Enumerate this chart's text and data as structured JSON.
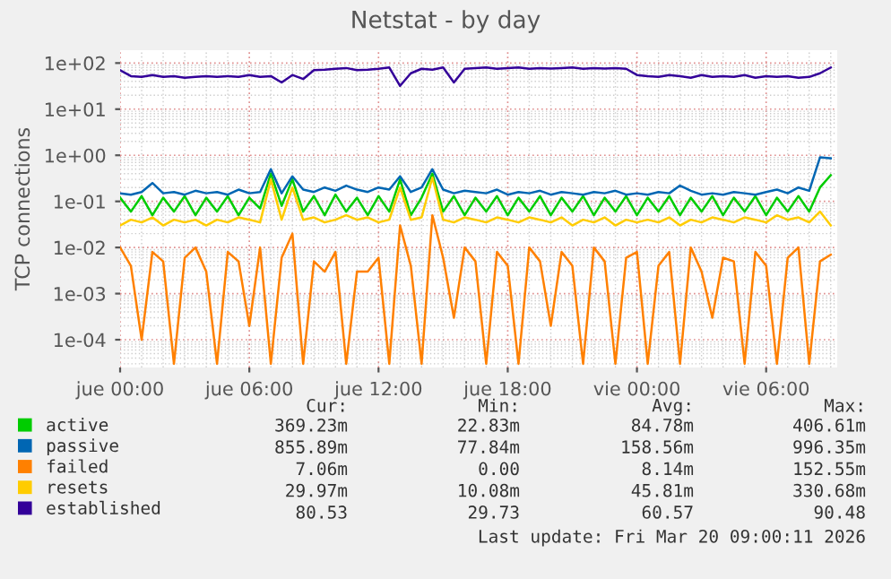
{
  "chart_data": {
    "type": "line",
    "title": "Netstat - by day",
    "ylabel": "TCP connections",
    "log": "y",
    "ylim": [
      2.5e-05,
      190
    ],
    "yticks": [
      {
        "value": 0.0001,
        "label": "1e-04"
      },
      {
        "value": 0.001,
        "label": "1e-03"
      },
      {
        "value": 0.01,
        "label": "1e-02"
      },
      {
        "value": 0.1,
        "label": "1e-01"
      },
      {
        "value": 1,
        "label": "1e+00"
      },
      {
        "value": 10,
        "label": "1e+01"
      },
      {
        "value": 100,
        "label": "1e+02"
      }
    ],
    "xlim": [
      "2026-03-19T00:00",
      "2026-03-20T09:18"
    ],
    "xticks": [
      {
        "value": "2026-03-19T00:00",
        "label": "jue 00:00"
      },
      {
        "value": "2026-03-19T06:00",
        "label": "jue 06:00"
      },
      {
        "value": "2026-03-19T12:00",
        "label": "jue 12:00"
      },
      {
        "value": "2026-03-19T18:00",
        "label": "jue 18:00"
      },
      {
        "value": "2026-03-20T00:00",
        "label": "vie 00:00"
      },
      {
        "value": "2026-03-20T06:00",
        "label": "vie 06:00"
      }
    ],
    "x": [
      "2026-03-19T00:00",
      "2026-03-19T00:30",
      "2026-03-19T01:00",
      "2026-03-19T01:30",
      "2026-03-19T02:00",
      "2026-03-19T02:30",
      "2026-03-19T03:00",
      "2026-03-19T03:30",
      "2026-03-19T04:00",
      "2026-03-19T04:30",
      "2026-03-19T05:00",
      "2026-03-19T05:30",
      "2026-03-19T06:00",
      "2026-03-19T06:30",
      "2026-03-19T07:00",
      "2026-03-19T07:30",
      "2026-03-19T08:00",
      "2026-03-19T08:30",
      "2026-03-19T09:00",
      "2026-03-19T09:30",
      "2026-03-19T10:00",
      "2026-03-19T10:30",
      "2026-03-19T11:00",
      "2026-03-19T11:30",
      "2026-03-19T12:00",
      "2026-03-19T12:30",
      "2026-03-19T13:00",
      "2026-03-19T13:30",
      "2026-03-19T14:00",
      "2026-03-19T14:30",
      "2026-03-19T15:00",
      "2026-03-19T15:30",
      "2026-03-19T16:00",
      "2026-03-19T16:30",
      "2026-03-19T17:00",
      "2026-03-19T17:30",
      "2026-03-19T18:00",
      "2026-03-19T18:30",
      "2026-03-19T19:00",
      "2026-03-19T19:30",
      "2026-03-19T20:00",
      "2026-03-19T20:30",
      "2026-03-19T21:00",
      "2026-03-19T21:30",
      "2026-03-19T22:00",
      "2026-03-19T22:30",
      "2026-03-19T23:00",
      "2026-03-19T23:30",
      "2026-03-20T00:00",
      "2026-03-20T00:30",
      "2026-03-20T01:00",
      "2026-03-20T01:30",
      "2026-03-20T02:00",
      "2026-03-20T02:30",
      "2026-03-20T03:00",
      "2026-03-20T03:30",
      "2026-03-20T04:00",
      "2026-03-20T04:30",
      "2026-03-20T05:00",
      "2026-03-20T05:30",
      "2026-03-20T06:00",
      "2026-03-20T06:30",
      "2026-03-20T07:00",
      "2026-03-20T07:30",
      "2026-03-20T08:00",
      "2026-03-20T08:30",
      "2026-03-20T09:00"
    ],
    "grid": true,
    "legend": "bottom left",
    "line_style": "solid",
    "marker": "none",
    "series": [
      {
        "name": "active",
        "color": "#00cc00",
        "values": [
          0.12,
          0.06,
          0.13,
          0.05,
          0.12,
          0.06,
          0.13,
          0.05,
          0.12,
          0.06,
          0.13,
          0.05,
          0.12,
          0.07,
          0.4,
          0.08,
          0.3,
          0.06,
          0.13,
          0.05,
          0.14,
          0.06,
          0.12,
          0.05,
          0.13,
          0.06,
          0.3,
          0.05,
          0.12,
          0.4,
          0.06,
          0.13,
          0.05,
          0.12,
          0.06,
          0.13,
          0.05,
          0.12,
          0.06,
          0.13,
          0.05,
          0.12,
          0.06,
          0.13,
          0.05,
          0.12,
          0.06,
          0.13,
          0.05,
          0.12,
          0.06,
          0.13,
          0.05,
          0.12,
          0.06,
          0.13,
          0.05,
          0.12,
          0.06,
          0.13,
          0.05,
          0.12,
          0.06,
          0.13,
          0.06,
          0.2,
          0.37
        ]
      },
      {
        "name": "passive",
        "color": "#0066b3",
        "values": [
          0.15,
          0.14,
          0.16,
          0.25,
          0.15,
          0.16,
          0.14,
          0.17,
          0.15,
          0.16,
          0.14,
          0.18,
          0.15,
          0.16,
          0.5,
          0.15,
          0.35,
          0.18,
          0.16,
          0.2,
          0.17,
          0.22,
          0.18,
          0.16,
          0.2,
          0.18,
          0.35,
          0.16,
          0.2,
          0.5,
          0.18,
          0.15,
          0.17,
          0.16,
          0.15,
          0.18,
          0.14,
          0.16,
          0.15,
          0.17,
          0.14,
          0.16,
          0.15,
          0.14,
          0.16,
          0.15,
          0.17,
          0.14,
          0.15,
          0.14,
          0.16,
          0.15,
          0.22,
          0.17,
          0.14,
          0.15,
          0.14,
          0.16,
          0.15,
          0.14,
          0.16,
          0.18,
          0.15,
          0.2,
          0.17,
          0.9,
          0.86
        ]
      },
      {
        "name": "failed",
        "color": "#ff8000",
        "values": [
          0.01,
          0.004,
          0.0001,
          0.008,
          0.005,
          3e-05,
          0.006,
          0.01,
          0.003,
          3e-05,
          0.008,
          0.005,
          0.0002,
          0.01,
          3e-05,
          0.006,
          0.02,
          3e-05,
          0.005,
          0.003,
          0.008,
          3e-05,
          0.003,
          0.003,
          0.006,
          3e-05,
          0.03,
          0.004,
          3e-05,
          0.05,
          0.006,
          0.0003,
          0.01,
          0.005,
          3e-05,
          0.008,
          0.004,
          3e-05,
          0.01,
          0.005,
          0.0002,
          0.008,
          0.004,
          3e-05,
          0.01,
          0.005,
          3e-05,
          0.006,
          0.008,
          3e-05,
          0.004,
          0.008,
          3e-05,
          0.01,
          0.003,
          0.0003,
          0.006,
          0.005,
          3e-05,
          0.008,
          0.004,
          3e-05,
          0.006,
          0.01,
          3e-05,
          0.005,
          0.007
        ]
      },
      {
        "name": "resets",
        "color": "#ffcc00",
        "values": [
          0.03,
          0.04,
          0.035,
          0.045,
          0.03,
          0.04,
          0.035,
          0.04,
          0.03,
          0.04,
          0.035,
          0.045,
          0.04,
          0.035,
          0.3,
          0.04,
          0.2,
          0.04,
          0.045,
          0.035,
          0.04,
          0.05,
          0.04,
          0.045,
          0.035,
          0.04,
          0.2,
          0.04,
          0.045,
          0.33,
          0.04,
          0.035,
          0.045,
          0.04,
          0.035,
          0.045,
          0.04,
          0.035,
          0.045,
          0.04,
          0.035,
          0.045,
          0.03,
          0.04,
          0.035,
          0.045,
          0.03,
          0.04,
          0.035,
          0.04,
          0.035,
          0.045,
          0.03,
          0.04,
          0.035,
          0.045,
          0.04,
          0.035,
          0.045,
          0.04,
          0.035,
          0.05,
          0.04,
          0.045,
          0.035,
          0.06,
          0.03
        ]
      },
      {
        "name": "established",
        "color": "#330099",
        "values": [
          70,
          52,
          50,
          55,
          50,
          52,
          48,
          50,
          52,
          50,
          52,
          50,
          55,
          50,
          52,
          38,
          55,
          45,
          70,
          72,
          75,
          78,
          70,
          72,
          75,
          80,
          32,
          60,
          75,
          72,
          80,
          38,
          75,
          78,
          80,
          75,
          78,
          80,
          75,
          78,
          76,
          78,
          80,
          75,
          78,
          76,
          78,
          75,
          55,
          52,
          50,
          55,
          52,
          48,
          55,
          50,
          52,
          50,
          55,
          48,
          52,
          50,
          52,
          48,
          50,
          60,
          80
        ]
      }
    ],
    "annotations": [
      "Cur:",
      "Min:",
      "Avg:",
      "Max:",
      "369.23m",
      "22.83m",
      "84.78m",
      "406.61m",
      "855.89m",
      "77.84m",
      "158.56m",
      "996.35m",
      "7.06m",
      "0.00",
      "8.14m",
      "152.55m",
      "29.97m",
      "10.08m",
      "45.81m",
      "330.68m",
      "80.53",
      "29.73",
      "60.57",
      "90.48",
      "Last update: Fri Mar 20 09:00:11 2026"
    ]
  }
}
